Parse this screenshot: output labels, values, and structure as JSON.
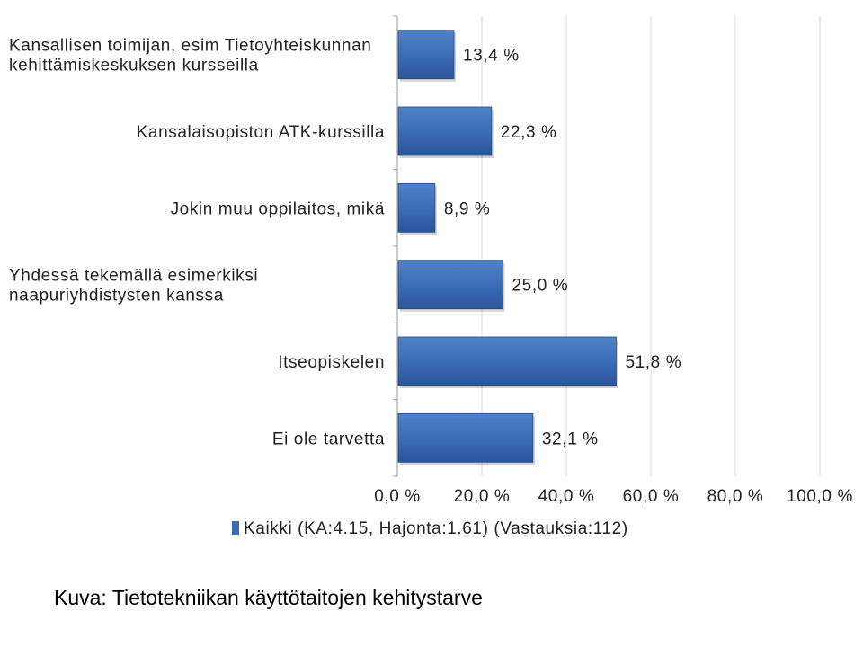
{
  "chart_data": {
    "type": "bar",
    "orientation": "horizontal",
    "categories": [
      [
        "Kansallisen toimijan, esim Tietoyhteiskunnan",
        "kehittämiskeskuksen kursseilla"
      ],
      [
        "Kansalaisopiston ATK-kurssilla"
      ],
      [
        "Jokin muu oppilaitos, mikä"
      ],
      [
        "Yhdessä tekemällä esimerkiksi",
        "naapuriyhdistysten kanssa"
      ],
      [
        "Itseopiskelen"
      ],
      [
        "Ei ole tarvetta"
      ]
    ],
    "series": [
      {
        "name": "Kaikki (KA:4.15, Hajonta:1.61) (Vastauksia:112)",
        "values": [
          13.4,
          22.3,
          8.9,
          25.0,
          51.8,
          32.1
        ],
        "labels": [
          "13,4 %",
          "22,3 %",
          "8,9 %",
          "25,0 %",
          "51,8 %",
          "32,1 %"
        ],
        "color": "#3a6bb5"
      }
    ],
    "xlim": [
      0,
      100
    ],
    "ticks": [
      0,
      20,
      40,
      60,
      80,
      100
    ],
    "tick_labels": [
      "0,0 %",
      "20,0 %",
      "40,0 %",
      "60,0 %",
      "80,0 %",
      "100,0 %"
    ],
    "grid": true,
    "legend_position": "bottom"
  },
  "caption": "Kuva: Tietotekniikan käyttötaitojen kehitystarve",
  "colors": {
    "bar": "#3a6bb5",
    "bar_dark": "#244a87",
    "gridline": "#d9d9d9",
    "axis": "#a6a6a6"
  }
}
